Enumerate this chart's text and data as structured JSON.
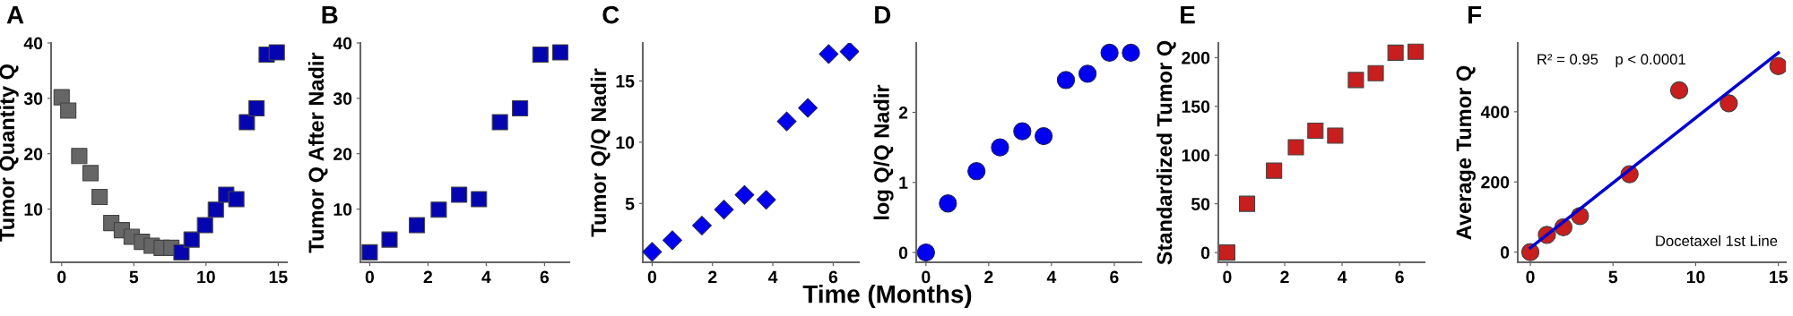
{
  "chart_data": [
    {
      "type": "scatter",
      "title": "A",
      "ylabel": "Tumor Quantity Q",
      "marker": "square",
      "xlim": [
        -0.73,
        15.6
      ],
      "xticks": [
        0,
        5,
        10,
        15
      ],
      "ylim": [
        0.4,
        40
      ],
      "yticks": [
        10,
        20,
        30,
        40
      ],
      "grid": false,
      "series": [
        {
          "color": "#666666",
          "x": [
            0,
            0.46,
            1.22,
            2.0,
            2.63,
            3.44,
            4.17,
            4.85,
            5.56,
            6.24,
            6.93,
            7.6
          ],
          "values": [
            30.2,
            27.8,
            19.6,
            16.5,
            12.2,
            7.5,
            6.2,
            5.0,
            4.1,
            3.4,
            3.0,
            3.0
          ]
        },
        {
          "color": "#0505b0",
          "x": [
            8.3,
            9.0,
            9.93,
            10.68,
            11.4,
            12.1,
            12.83,
            13.5,
            14.2,
            14.9
          ],
          "values": [
            2.2,
            4.5,
            7.1,
            9.9,
            12.6,
            11.8,
            25.7,
            28.2,
            37.9,
            38.3
          ]
        }
      ]
    },
    {
      "type": "scatter",
      "title": "B",
      "ylabel": "Tumor Q After Nadir",
      "marker": "square",
      "xlim": [
        -0.32,
        6.85
      ],
      "xticks": [
        0,
        2,
        4,
        6
      ],
      "ylim": [
        0.4,
        40
      ],
      "yticks": [
        10,
        20,
        30,
        40
      ],
      "grid": false,
      "series": [
        {
          "color": "#0505b0",
          "x": [
            0,
            0.68,
            1.62,
            2.37,
            3.07,
            3.75,
            4.47,
            5.16,
            5.86,
            6.54
          ],
          "values": [
            2.2,
            4.5,
            7.1,
            9.9,
            12.6,
            11.8,
            25.7,
            28.2,
            37.9,
            38.3
          ]
        }
      ]
    },
    {
      "type": "scatter",
      "title": "C",
      "ylabel": "Tumor Q/Q Nadir",
      "xlabel": "Time (Months)",
      "marker": "diamond",
      "xlim": [
        -0.31,
        6.85
      ],
      "xticks": [
        0,
        2,
        4,
        6
      ],
      "ylim": [
        0.2,
        18.1
      ],
      "yticks": [
        5,
        10,
        15
      ],
      "grid": false,
      "series": [
        {
          "color": "#0000f0",
          "x": [
            0,
            0.67,
            1.65,
            2.38,
            3.06,
            3.78,
            4.46,
            5.16,
            5.85,
            6.54
          ],
          "values": [
            1.05,
            2.0,
            3.2,
            4.5,
            5.7,
            5.3,
            11.7,
            12.8,
            17.2,
            17.4
          ]
        }
      ]
    },
    {
      "type": "scatter",
      "title": "D",
      "ylabel": "log Q/Q Nadir",
      "marker": "circle",
      "xlim": [
        -0.31,
        6.86
      ],
      "xticks": [
        0,
        2,
        4,
        6
      ],
      "ylim": [
        -0.14,
        2.99
      ],
      "yticks": [
        0,
        1,
        2
      ],
      "grid": false,
      "series": [
        {
          "color": "#0000f0",
          "x": [
            0,
            0.7,
            1.61,
            2.36,
            3.07,
            3.75,
            4.46,
            5.15,
            5.85,
            6.53
          ],
          "values": [
            0,
            0.7,
            1.16,
            1.5,
            1.73,
            1.66,
            2.46,
            2.55,
            2.85,
            2.85
          ]
        }
      ]
    },
    {
      "type": "scatter",
      "title": "E",
      "ylabel": "Standardized Tumor Q",
      "marker": "square",
      "xlim": [
        -0.31,
        6.87
      ],
      "xticks": [
        0,
        2,
        4,
        6
      ],
      "ylim": [
        -10,
        215
      ],
      "yticks": [
        0,
        50,
        100,
        150,
        200
      ],
      "grid": false,
      "series": [
        {
          "color": "#c81e1e",
          "x": [
            0,
            0.69,
            1.63,
            2.39,
            3.07,
            3.76,
            4.48,
            5.17,
            5.86,
            6.56
          ],
          "values": [
            0,
            50,
            84,
            108,
            125,
            120,
            177,
            184,
            205,
            206
          ]
        }
      ]
    },
    {
      "type": "scatter",
      "title": "F",
      "ylabel": "Average Tumor Q",
      "marker": "circle",
      "xlim": [
        -0.76,
        15.45
      ],
      "xticks": [
        0,
        5,
        10,
        15
      ],
      "ylim": [
        -29,
        596
      ],
      "yticks": [
        0,
        200,
        400
      ],
      "grid": false,
      "annotations": [
        "R² = 0.95    p < 0.0001",
        "Docetaxel 1st Line"
      ],
      "series": [
        {
          "color": "#c81e1e",
          "x": [
            0,
            1,
            2,
            3,
            6,
            9,
            12,
            15
          ],
          "values": [
            0,
            49,
            71,
            103,
            222,
            461,
            424,
            530
          ]
        },
        {
          "type": "line",
          "color": "#0000d0",
          "marker": "none",
          "x": [
            0,
            15
          ],
          "values": [
            12,
            568
          ]
        }
      ]
    }
  ]
}
